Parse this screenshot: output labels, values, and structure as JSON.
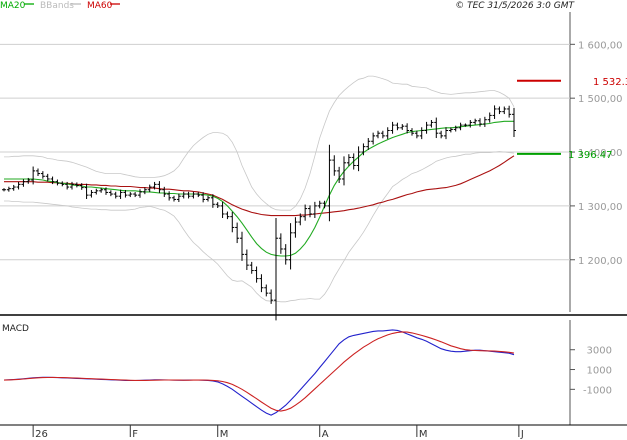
{
  "header": {
    "legend": [
      {
        "label": "MA20",
        "color": "#00aa00"
      },
      {
        "label": "BBands",
        "color": "#bbbbbb"
      },
      {
        "label": "MA60",
        "color": "#cc0000"
      }
    ],
    "credit": "© TEC 31/5/2026 3:0 GMT"
  },
  "colors": {
    "price": "#000000",
    "ma20": "#22aa22",
    "ma60": "#aa1111",
    "bbands": "#c8c8c8",
    "grid": "#cfcfcf",
    "resistance": "#cc0000",
    "support": "#00a000",
    "macd": "#2222cc",
    "signal": "#cc2222"
  },
  "chart_data": [
    {
      "type": "line",
      "subtype": "ohlc",
      "ylim": [
        1103,
        1660
      ],
      "yticks": [
        {
          "value": 1600,
          "label": "1 600,00"
        },
        {
          "value": 1500,
          "label": "1 500,00"
        },
        {
          "value": 1400,
          "label": "1 400,00"
        },
        {
          "value": 1300,
          "label": "1 300,00"
        },
        {
          "value": 1200,
          "label": "1 200,00"
        }
      ],
      "xticks": [
        {
          "index": 6,
          "label": "26"
        },
        {
          "index": 26,
          "label": "F"
        },
        {
          "index": 44,
          "label": "M"
        },
        {
          "index": 65,
          "label": "A"
        },
        {
          "index": 85,
          "label": "M"
        },
        {
          "index": 106,
          "label": "J"
        }
      ],
      "levels": [
        {
          "name": "resistance",
          "value": 1532.3,
          "label": "1 532.3"
        },
        {
          "name": "support",
          "value": 1396.47,
          "label": "1 396.47"
        }
      ],
      "close": [
        1330,
        1332,
        1335,
        1340,
        1345,
        1348,
        1365,
        1360,
        1355,
        1350,
        1345,
        1342,
        1340,
        1335,
        1340,
        1338,
        1334,
        1320,
        1325,
        1328,
        1330,
        1325,
        1322,
        1318,
        1325,
        1320,
        1322,
        1320,
        1326,
        1330,
        1335,
        1340,
        1330,
        1322,
        1315,
        1312,
        1318,
        1322,
        1318,
        1322,
        1320,
        1312,
        1315,
        1303,
        1300,
        1285,
        1280,
        1260,
        1240,
        1210,
        1190,
        1180,
        1165,
        1148,
        1138,
        1125,
        1240,
        1220,
        1200,
        1250,
        1270,
        1280,
        1295,
        1285,
        1300,
        1305,
        1300,
        1385,
        1365,
        1350,
        1380,
        1390,
        1375,
        1400,
        1410,
        1420,
        1430,
        1435,
        1430,
        1440,
        1450,
        1445,
        1448,
        1440,
        1435,
        1430,
        1440,
        1450,
        1455,
        1435,
        1430,
        1440,
        1442,
        1445,
        1450,
        1450,
        1455,
        1458,
        1452,
        1460,
        1468,
        1480,
        1475,
        1480,
        1470,
        1440
      ],
      "series": [
        {
          "name": "MA20",
          "values": [
            1350,
            1350,
            1350,
            1350,
            1350,
            1350,
            1350,
            1349,
            1348,
            1346,
            1345,
            1343,
            1342,
            1341,
            1339,
            1338,
            1337,
            1335,
            1335,
            1334,
            1333,
            1332,
            1331,
            1330,
            1329,
            1328,
            1328,
            1328,
            1327,
            1326,
            1326,
            1325,
            1324,
            1324,
            1323,
            1323,
            1322,
            1322,
            1322,
            1322,
            1322,
            1321,
            1320,
            1318,
            1314,
            1308,
            1300,
            1290,
            1280,
            1268,
            1255,
            1242,
            1230,
            1221,
            1214,
            1210,
            1208,
            1207,
            1207,
            1208,
            1212,
            1220,
            1230,
            1244,
            1260,
            1279,
            1300,
            1320,
            1338,
            1352,
            1364,
            1374,
            1383,
            1391,
            1399,
            1405,
            1410,
            1415,
            1419,
            1423,
            1427,
            1430,
            1433,
            1436,
            1438,
            1439,
            1440,
            1441,
            1442,
            1443,
            1444,
            1445,
            1445,
            1446,
            1447,
            1448,
            1449,
            1450,
            1451,
            1452,
            1453,
            1455,
            1456,
            1457,
            1457,
            1457
          ]
        },
        {
          "name": "MA60",
          "values": [
            1345,
            1345,
            1345,
            1345,
            1345,
            1345,
            1345,
            1344,
            1344,
            1344,
            1343,
            1343,
            1342,
            1342,
            1341,
            1340,
            1340,
            1340,
            1339,
            1339,
            1338,
            1338,
            1337,
            1337,
            1336,
            1336,
            1336,
            1335,
            1334,
            1334,
            1333,
            1333,
            1332,
            1331,
            1331,
            1330,
            1329,
            1328,
            1328,
            1327,
            1326,
            1324,
            1322,
            1320,
            1316,
            1312,
            1307,
            1302,
            1298,
            1294,
            1291,
            1288,
            1286,
            1284,
            1283,
            1282,
            1282,
            1282,
            1282,
            1282,
            1282,
            1283,
            1283,
            1284,
            1285,
            1286,
            1287,
            1288,
            1289,
            1290,
            1291,
            1293,
            1294,
            1296,
            1298,
            1300,
            1302,
            1305,
            1307,
            1310,
            1312,
            1315,
            1318,
            1321,
            1323,
            1326,
            1328,
            1330,
            1331,
            1332,
            1333,
            1334,
            1336,
            1338,
            1341,
            1345,
            1349,
            1353,
            1357,
            1361,
            1365,
            1370,
            1375,
            1381,
            1387,
            1393
          ]
        },
        {
          "name": "BBands upper",
          "values": [
            1391,
            1391,
            1392,
            1392,
            1393,
            1393,
            1393,
            1392,
            1391,
            1388,
            1387,
            1385,
            1384,
            1383,
            1381,
            1378,
            1375,
            1372,
            1368,
            1364,
            1362,
            1360,
            1360,
            1360,
            1360,
            1358,
            1356,
            1354,
            1353,
            1353,
            1353,
            1353,
            1354,
            1356,
            1360,
            1365,
            1374,
            1388,
            1401,
            1412,
            1420,
            1427,
            1433,
            1436,
            1436,
            1435,
            1430,
            1418,
            1400,
            1375,
            1355,
            1335,
            1322,
            1312,
            1304,
            1297,
            1293,
            1292,
            1292,
            1292,
            1299,
            1313,
            1333,
            1360,
            1393,
            1426,
            1452,
            1476,
            1492,
            1505,
            1514,
            1522,
            1529,
            1535,
            1537,
            1541,
            1541,
            1539,
            1536,
            1533,
            1528,
            1527,
            1526,
            1526,
            1522,
            1521,
            1520,
            1519,
            1515,
            1512,
            1509,
            1508,
            1507,
            1508,
            1509,
            1510,
            1510,
            1511,
            1512,
            1513,
            1514,
            1514,
            1511,
            1506,
            1500,
            1484
          ]
        },
        {
          "name": "BBands lower",
          "values": [
            1309,
            1309,
            1308,
            1308,
            1307,
            1307,
            1307,
            1306,
            1305,
            1304,
            1303,
            1302,
            1301,
            1300,
            1298,
            1297,
            1296,
            1295,
            1294,
            1294,
            1293,
            1293,
            1292,
            1292,
            1292,
            1292,
            1293,
            1294,
            1297,
            1298,
            1299,
            1297,
            1294,
            1292,
            1287,
            1281,
            1270,
            1256,
            1243,
            1232,
            1224,
            1215,
            1207,
            1200,
            1192,
            1181,
            1170,
            1162,
            1160,
            1161,
            1155,
            1149,
            1138,
            1130,
            1124,
            1123,
            1123,
            1122,
            1122,
            1124,
            1125,
            1127,
            1127,
            1128,
            1127,
            1127,
            1136,
            1150,
            1168,
            1183,
            1198,
            1214,
            1226,
            1238,
            1251,
            1266,
            1282,
            1297,
            1311,
            1323,
            1336,
            1342,
            1349,
            1354,
            1360,
            1363,
            1367,
            1372,
            1377,
            1383,
            1386,
            1389,
            1391,
            1392,
            1394,
            1396,
            1396,
            1398,
            1399,
            1399,
            1399,
            1400,
            1401,
            1400,
            1399,
            1398
          ]
        }
      ]
    },
    {
      "type": "line",
      "title": "MACD",
      "ylim": [
        -4500,
        6000
      ],
      "yticks": [
        {
          "value": 3000,
          "label": "3000"
        },
        {
          "value": 1000,
          "label": "1000"
        },
        {
          "value": -1000,
          "label": "-1000"
        }
      ],
      "series": [
        {
          "name": "MACD",
          "values": [
            -60,
            -40,
            -10,
            20,
            60,
            110,
            160,
            190,
            210,
            210,
            200,
            180,
            160,
            140,
            120,
            100,
            80,
            60,
            40,
            20,
            0,
            -20,
            -40,
            -60,
            -80,
            -100,
            -110,
            -110,
            -100,
            -80,
            -60,
            -40,
            -40,
            -50,
            -60,
            -70,
            -80,
            -80,
            -70,
            -60,
            -60,
            -80,
            -100,
            -150,
            -250,
            -450,
            -700,
            -1000,
            -1350,
            -1700,
            -2050,
            -2400,
            -2750,
            -3100,
            -3400,
            -3600,
            -3350,
            -3000,
            -2600,
            -2100,
            -1600,
            -1050,
            -500,
            50,
            600,
            1200,
            1800,
            2400,
            3000,
            3600,
            4000,
            4300,
            4450,
            4550,
            4650,
            4750,
            4850,
            4900,
            4900,
            4950,
            5000,
            4950,
            4800,
            4600,
            4400,
            4200,
            4050,
            3850,
            3600,
            3350,
            3100,
            2950,
            2850,
            2800,
            2800,
            2850,
            2900,
            2950,
            2950,
            2900,
            2850,
            2800,
            2750,
            2700,
            2650,
            2500
          ]
        },
        {
          "name": "Signal",
          "values": [
            -70,
            -50,
            -30,
            0,
            40,
            80,
            120,
            160,
            180,
            195,
            200,
            195,
            185,
            170,
            150,
            130,
            110,
            90,
            70,
            50,
            30,
            10,
            -10,
            -30,
            -50,
            -70,
            -85,
            -95,
            -100,
            -95,
            -85,
            -75,
            -65,
            -60,
            -60,
            -65,
            -70,
            -75,
            -75,
            -72,
            -70,
            -72,
            -80,
            -100,
            -140,
            -210,
            -330,
            -500,
            -730,
            -1000,
            -1300,
            -1620,
            -1950,
            -2280,
            -2600,
            -2900,
            -3120,
            -3200,
            -3100,
            -2900,
            -2600,
            -2250,
            -1850,
            -1400,
            -950,
            -500,
            -50,
            400,
            850,
            1300,
            1750,
            2150,
            2550,
            2900,
            3250,
            3550,
            3850,
            4100,
            4300,
            4500,
            4650,
            4750,
            4800,
            4780,
            4700,
            4580,
            4450,
            4300,
            4150,
            3980,
            3800,
            3600,
            3400,
            3250,
            3100,
            3000,
            2950,
            2920,
            2900,
            2890,
            2880,
            2860,
            2830,
            2790,
            2740,
            2660
          ]
        }
      ]
    }
  ]
}
